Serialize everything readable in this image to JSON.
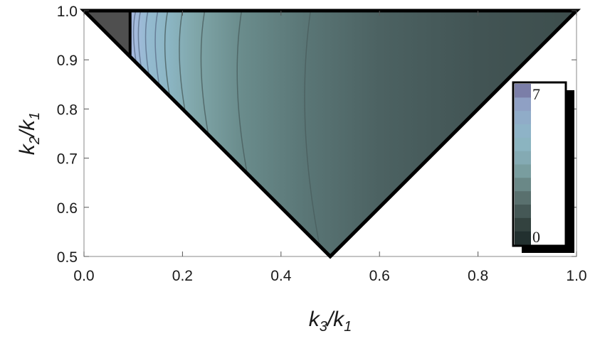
{
  "chart_data": {
    "type": "heatmap",
    "title": "",
    "xlabel": {
      "main": "k",
      "sub1": "3",
      "slash": "/k",
      "sub2": "1"
    },
    "ylabel": {
      "main": "k",
      "sub1": "2",
      "slash": "/k",
      "sub2": "1"
    },
    "xlim": [
      0.0,
      1.0
    ],
    "ylim": [
      0.5,
      1.0
    ],
    "x_ticks": [
      "0.0",
      "0.2",
      "0.4",
      "0.6",
      "0.8",
      "1.0"
    ],
    "y_ticks": [
      "0.5",
      "0.6",
      "0.7",
      "0.8",
      "0.9",
      "1.0"
    ],
    "region": "triangle with vertices (0,1), (1,1), (0.5,0.5)",
    "masked_region": "k3/k1 < 0.095",
    "contour_levels_x": [
      0.105,
      0.115,
      0.13,
      0.15,
      0.17,
      0.2,
      0.245,
      0.32,
      0.46
    ],
    "colorbar": {
      "min_label": "0",
      "max_label": "7",
      "colors": [
        "#22302f",
        "#33423f",
        "#455856",
        "#59706e",
        "#6a8887",
        "#799d9f",
        "#84aab3",
        "#8bb4c0",
        "#8eb3c7",
        "#90acc8",
        "#8fa0c4",
        "#7b7ea8"
      ]
    },
    "mask_color": "#4f4f4f",
    "grid": false,
    "legend_position": "right"
  }
}
